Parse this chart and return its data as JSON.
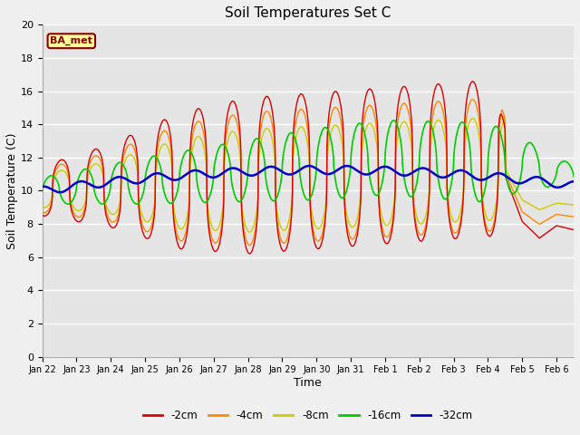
{
  "title": "Soil Temperatures Set C",
  "xlabel": "Time",
  "ylabel": "Soil Temperature (C)",
  "ylim": [
    0,
    20
  ],
  "yticks": [
    0,
    2,
    4,
    6,
    8,
    10,
    12,
    14,
    16,
    18,
    20
  ],
  "bg_color": "#e5e5e5",
  "fig_color": "#f0f0f0",
  "line_colors": {
    "-2cm": "#dd0000",
    "-4cm": "#ff8800",
    "-8cm": "#cccc00",
    "-16cm": "#00cc00",
    "-32cm": "#0000cc"
  },
  "legend_label": "BA_met",
  "x_tick_labels": [
    "Jan 22",
    "Jan 23",
    "Jan 24",
    "Jan 25",
    "Jan 26",
    "Jan 27",
    "Jan 28",
    "Jan 29",
    "Jan 30",
    "Jan 31",
    "Feb 1",
    "Feb 2",
    "Feb 3",
    "Feb 4",
    "Feb 5",
    "Feb 6"
  ],
  "grid_color": "#ffffff",
  "label_box_facecolor": "#ffff99",
  "label_box_edgecolor": "#8b0000",
  "label_text_color": "#8b0000"
}
